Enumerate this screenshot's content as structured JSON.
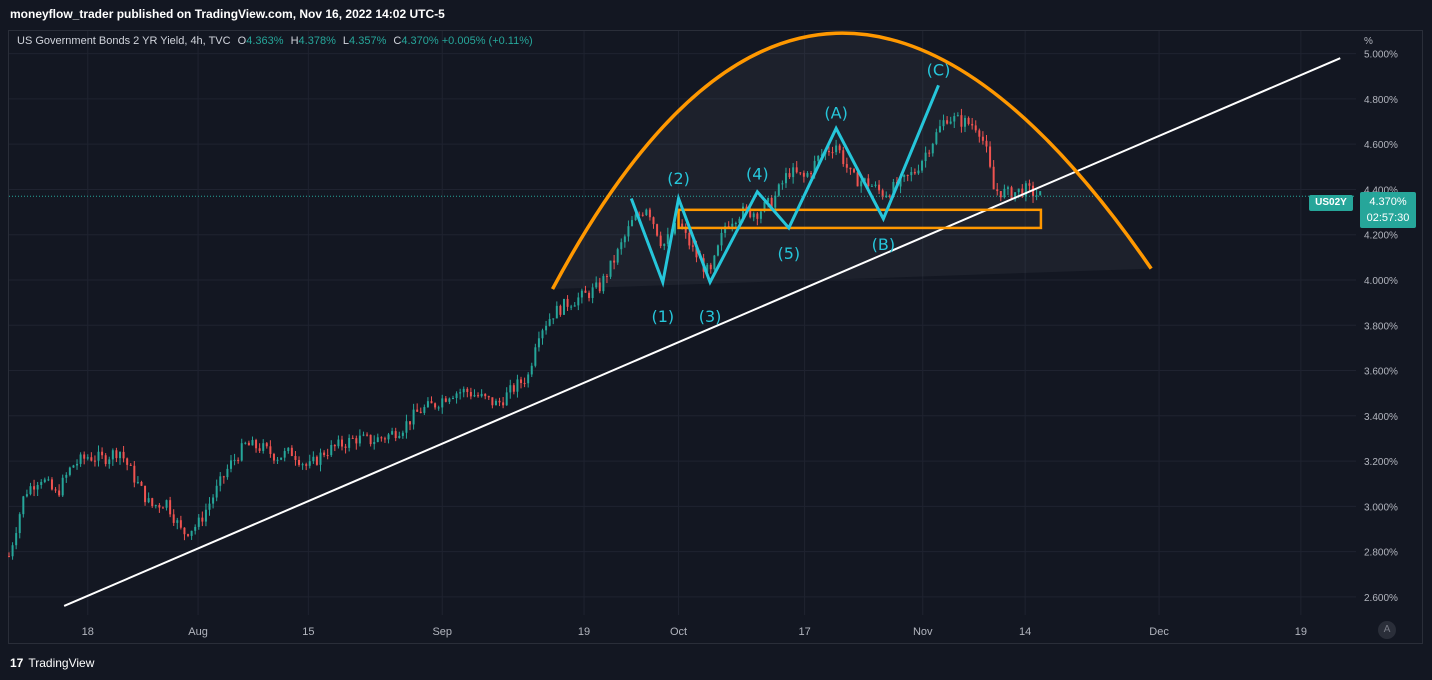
{
  "header": {
    "publish_line": "moneyflow_trader published on TradingView.com, Nov 16, 2022 14:02 UTC-5"
  },
  "legend": {
    "symbol": "US Government Bonds 2 YR Yield, 4h, TVC",
    "open_key": "O",
    "open": "4.363%",
    "high_key": "H",
    "high": "4.378%",
    "low_key": "L",
    "low": "4.357%",
    "close_key": "C",
    "close": "4.370%",
    "change": "+0.005% (+0.11%)"
  },
  "price_tag": {
    "ticker": "US02Y",
    "price": "4.370%",
    "countdown": "02:57:30"
  },
  "footer": {
    "logo_text": "TradingView",
    "logo_mark": "17"
  },
  "auto_button": "A",
  "colors": {
    "background": "#131722",
    "grid": "#1f2330",
    "up": "#26a69a",
    "down": "#ef5350",
    "wave": "#26c6da",
    "arc": "#ff9800",
    "trendline": "#ffffff"
  },
  "chart_data": {
    "type": "candlestick",
    "title": "US Government Bonds 2 YR Yield, 4h, TVC",
    "y_unit": "%",
    "ylim": [
      2.52,
      5.1
    ],
    "y_ticks": [
      "5.000%",
      "4.800%",
      "4.600%",
      "4.400%",
      "4.200%",
      "4.000%",
      "3.800%",
      "3.600%",
      "3.400%",
      "3.200%",
      "3.000%",
      "2.800%",
      "2.600%"
    ],
    "y_tick_values": [
      5.0,
      4.8,
      4.6,
      4.4,
      4.2,
      4.0,
      3.8,
      3.6,
      3.4,
      3.2,
      3.0,
      2.8,
      2.6
    ],
    "x_ticks": [
      "18",
      "Aug",
      "15",
      "Sep",
      "19",
      "Oct",
      "17",
      "Nov",
      "14",
      "Dec",
      "19"
    ],
    "x_tick_dates": [
      "2022-07-18",
      "2022-08-01",
      "2022-08-15",
      "2022-09-01",
      "2022-09-19",
      "2022-10-01",
      "2022-10-17",
      "2022-11-01",
      "2022-11-14",
      "2022-12-01",
      "2022-12-19"
    ],
    "x_range": [
      "2022-07-08",
      "2022-12-26"
    ],
    "last_price": 4.37,
    "price_path": [
      [
        "2022-07-08",
        2.78
      ],
      [
        "2022-07-10",
        3.06
      ],
      [
        "2022-07-12",
        3.13
      ],
      [
        "2022-07-14",
        3.05
      ],
      [
        "2022-07-16",
        3.18
      ],
      [
        "2022-07-18",
        3.22
      ],
      [
        "2022-07-20",
        3.21
      ],
      [
        "2022-07-22",
        3.25
      ],
      [
        "2022-07-24",
        3.12
      ],
      [
        "2022-07-26",
        3.0
      ],
      [
        "2022-07-28",
        3.02
      ],
      [
        "2022-07-30",
        2.88
      ],
      [
        "2022-08-01",
        2.92
      ],
      [
        "2022-08-03",
        3.05
      ],
      [
        "2022-08-05",
        3.18
      ],
      [
        "2022-08-07",
        3.27
      ],
      [
        "2022-08-09",
        3.26
      ],
      [
        "2022-08-11",
        3.22
      ],
      [
        "2022-08-13",
        3.24
      ],
      [
        "2022-08-15",
        3.17
      ],
      [
        "2022-08-17",
        3.24
      ],
      [
        "2022-08-19",
        3.27
      ],
      [
        "2022-08-21",
        3.3
      ],
      [
        "2022-08-23",
        3.29
      ],
      [
        "2022-08-25",
        3.31
      ],
      [
        "2022-08-27",
        3.35
      ],
      [
        "2022-08-29",
        3.42
      ],
      [
        "2022-08-31",
        3.45
      ],
      [
        "2022-09-02",
        3.5
      ],
      [
        "2022-09-04",
        3.51
      ],
      [
        "2022-09-06",
        3.48
      ],
      [
        "2022-09-08",
        3.45
      ],
      [
        "2022-09-10",
        3.52
      ],
      [
        "2022-09-12",
        3.58
      ],
      [
        "2022-09-13",
        3.76
      ],
      [
        "2022-09-15",
        3.85
      ],
      [
        "2022-09-17",
        3.9
      ],
      [
        "2022-09-19",
        3.93
      ],
      [
        "2022-09-21",
        3.97
      ],
      [
        "2022-09-23",
        4.1
      ],
      [
        "2022-09-25",
        4.25
      ],
      [
        "2022-09-27",
        4.33
      ],
      [
        "2022-09-29",
        4.15
      ],
      [
        "2022-10-01",
        4.25
      ],
      [
        "2022-10-03",
        4.12
      ],
      [
        "2022-10-05",
        4.02
      ],
      [
        "2022-10-07",
        4.25
      ],
      [
        "2022-10-09",
        4.3
      ],
      [
        "2022-10-11",
        4.3
      ],
      [
        "2022-10-13",
        4.35
      ],
      [
        "2022-10-15",
        4.48
      ],
      [
        "2022-10-17",
        4.45
      ],
      [
        "2022-10-19",
        4.55
      ],
      [
        "2022-10-21",
        4.6
      ],
      [
        "2022-10-23",
        4.45
      ],
      [
        "2022-10-25",
        4.43
      ],
      [
        "2022-10-27",
        4.38
      ],
      [
        "2022-10-29",
        4.42
      ],
      [
        "2022-10-31",
        4.48
      ],
      [
        "2022-11-02",
        4.6
      ],
      [
        "2022-11-04",
        4.72
      ],
      [
        "2022-11-06",
        4.7
      ],
      [
        "2022-11-08",
        4.68
      ],
      [
        "2022-11-09",
        4.58
      ],
      [
        "2022-11-10",
        4.4
      ],
      [
        "2022-11-12",
        4.38
      ],
      [
        "2022-11-14",
        4.4
      ],
      [
        "2022-11-16",
        4.37
      ]
    ]
  },
  "annotations": {
    "wave_labels": [
      "(1)",
      "(2)",
      "(3)",
      "(4)",
      "(5)",
      "(A)",
      "(B)",
      "(C)"
    ],
    "wave_points": [
      [
        "2022-09-25",
        4.36
      ],
      [
        "2022-09-29",
        3.99
      ],
      [
        "2022-10-01",
        4.36
      ],
      [
        "2022-10-05",
        3.99
      ],
      [
        "2022-10-11",
        4.39
      ],
      [
        "2022-10-15",
        4.23
      ],
      [
        "2022-10-21",
        4.67
      ],
      [
        "2022-10-27",
        4.27
      ],
      [
        "2022-11-03",
        4.86
      ]
    ],
    "label_anchors": [
      [
        "2022-09-29",
        3.84
      ],
      [
        "2022-10-01",
        4.45
      ],
      [
        "2022-10-05",
        3.84
      ],
      [
        "2022-10-11",
        4.47
      ],
      [
        "2022-10-15",
        4.12
      ],
      [
        "2022-10-21",
        4.74
      ],
      [
        "2022-10-27",
        4.16
      ],
      [
        "2022-11-03",
        4.93
      ]
    ],
    "support_zone": {
      "from": "2022-10-01",
      "to": "2022-11-16",
      "low": 4.23,
      "high": 4.31
    },
    "trendline": [
      [
        "2022-07-15",
        2.56
      ],
      [
        "2022-12-24",
        4.98
      ]
    ],
    "arc": {
      "from": [
        "2022-09-15",
        3.96
      ],
      "peak": [
        "2022-10-21",
        5.09
      ],
      "to": [
        "2022-11-30",
        4.05
      ]
    }
  }
}
